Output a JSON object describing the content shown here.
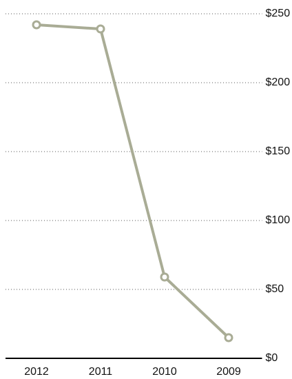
{
  "chart_data": {
    "type": "line",
    "categories": [
      "2012",
      "2011",
      "2010",
      "2009"
    ],
    "series": [
      {
        "color": "#a9ac95",
        "values": [
          242,
          239,
          59,
          15
        ]
      }
    ],
    "ylim": [
      0,
      250
    ],
    "yticks": [
      {
        "value": 0,
        "label": "$0"
      },
      {
        "value": 50,
        "label": "$50"
      },
      {
        "value": 100,
        "label": "$100"
      },
      {
        "value": 150,
        "label": "$150"
      },
      {
        "value": 200,
        "label": "$200"
      },
      {
        "value": 250,
        "label": "$250"
      }
    ],
    "grid": true
  }
}
